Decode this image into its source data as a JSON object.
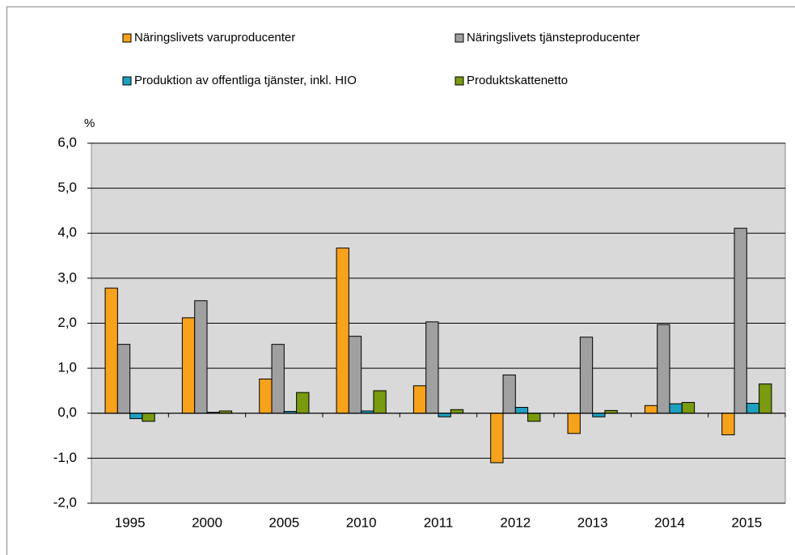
{
  "chart_data": {
    "type": "bar",
    "y_label": "%",
    "categories": [
      "1995",
      "2000",
      "2005",
      "2010",
      "2011",
      "2012",
      "2013",
      "2014",
      "2015"
    ],
    "series": [
      {
        "name": "Näringslivets varuproducenter",
        "color": "#f7a21b",
        "values": [
          2.78,
          2.12,
          0.76,
          3.67,
          0.61,
          -1.1,
          -0.45,
          0.17,
          -0.48
        ]
      },
      {
        "name": "Näringslivets tjänsteproducenter",
        "color": "#a0a0a0",
        "values": [
          1.53,
          2.5,
          1.53,
          1.71,
          2.03,
          0.85,
          1.69,
          1.97,
          4.11
        ]
      },
      {
        "name": "Produktion av offentliga tjänster, inkl. HIO",
        "color": "#1fa0c0",
        "values": [
          -0.12,
          0.02,
          0.04,
          0.05,
          -0.08,
          0.13,
          -0.08,
          0.21,
          0.22
        ]
      },
      {
        "name": "Produktskattenetto",
        "color": "#7a9a10",
        "values": [
          -0.18,
          0.05,
          0.46,
          0.5,
          0.08,
          -0.18,
          0.06,
          0.24,
          0.65
        ]
      }
    ],
    "ylim": [
      -2,
      6
    ],
    "yticks": [
      {
        "value": -2,
        "label": "-2,0"
      },
      {
        "value": -1,
        "label": "-1,0"
      },
      {
        "value": 0,
        "label": "0,0"
      },
      {
        "value": 1,
        "label": "1,0"
      },
      {
        "value": 2,
        "label": "2,0"
      },
      {
        "value": 3,
        "label": "3,0"
      },
      {
        "value": 4,
        "label": "4,0"
      },
      {
        "value": 5,
        "label": "5,0"
      },
      {
        "value": 6,
        "label": "6,0"
      }
    ],
    "grid": true,
    "plot_background": "#d9d9d9"
  }
}
